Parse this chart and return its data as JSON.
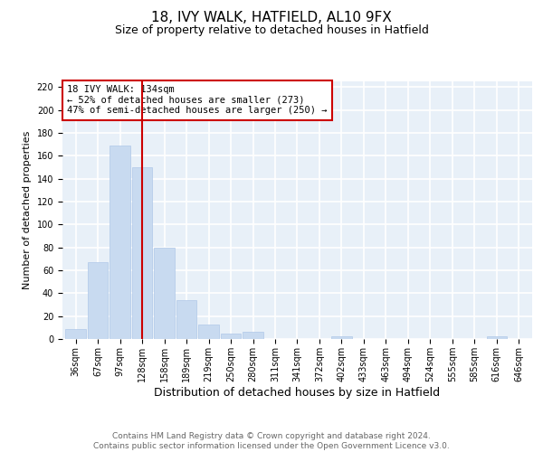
{
  "title": "18, IVY WALK, HATFIELD, AL10 9FX",
  "subtitle": "Size of property relative to detached houses in Hatfield",
  "xlabel": "Distribution of detached houses by size in Hatfield",
  "ylabel": "Number of detached properties",
  "bins": [
    36,
    67,
    97,
    128,
    158,
    189,
    219,
    250,
    280,
    311,
    341,
    372,
    402,
    433,
    463,
    494,
    524,
    555,
    585,
    616,
    646
  ],
  "values": [
    9,
    67,
    169,
    150,
    80,
    34,
    13,
    5,
    6,
    0,
    0,
    0,
    2,
    0,
    0,
    0,
    0,
    0,
    0,
    2,
    0
  ],
  "bar_color": "#c8daf0",
  "bar_edge_color": "#b0c8e8",
  "vline_x": 128,
  "vline_color": "#cc0000",
  "annotation_text": "18 IVY WALK: 134sqm\n← 52% of detached houses are smaller (273)\n47% of semi-detached houses are larger (250) →",
  "annotation_box_color": "#ffffff",
  "annotation_box_edge": "#cc0000",
  "ylim": [
    0,
    225
  ],
  "yticks": [
    0,
    20,
    40,
    60,
    80,
    100,
    120,
    140,
    160,
    180,
    200,
    220
  ],
  "background_color": "#e8f0f8",
  "grid_color": "#ffffff",
  "footer": "Contains HM Land Registry data © Crown copyright and database right 2024.\nContains public sector information licensed under the Open Government Licence v3.0.",
  "title_fontsize": 11,
  "subtitle_fontsize": 9,
  "xlabel_fontsize": 9,
  "ylabel_fontsize": 8,
  "tick_fontsize": 7,
  "annotation_fontsize": 7.5,
  "footer_fontsize": 6.5
}
